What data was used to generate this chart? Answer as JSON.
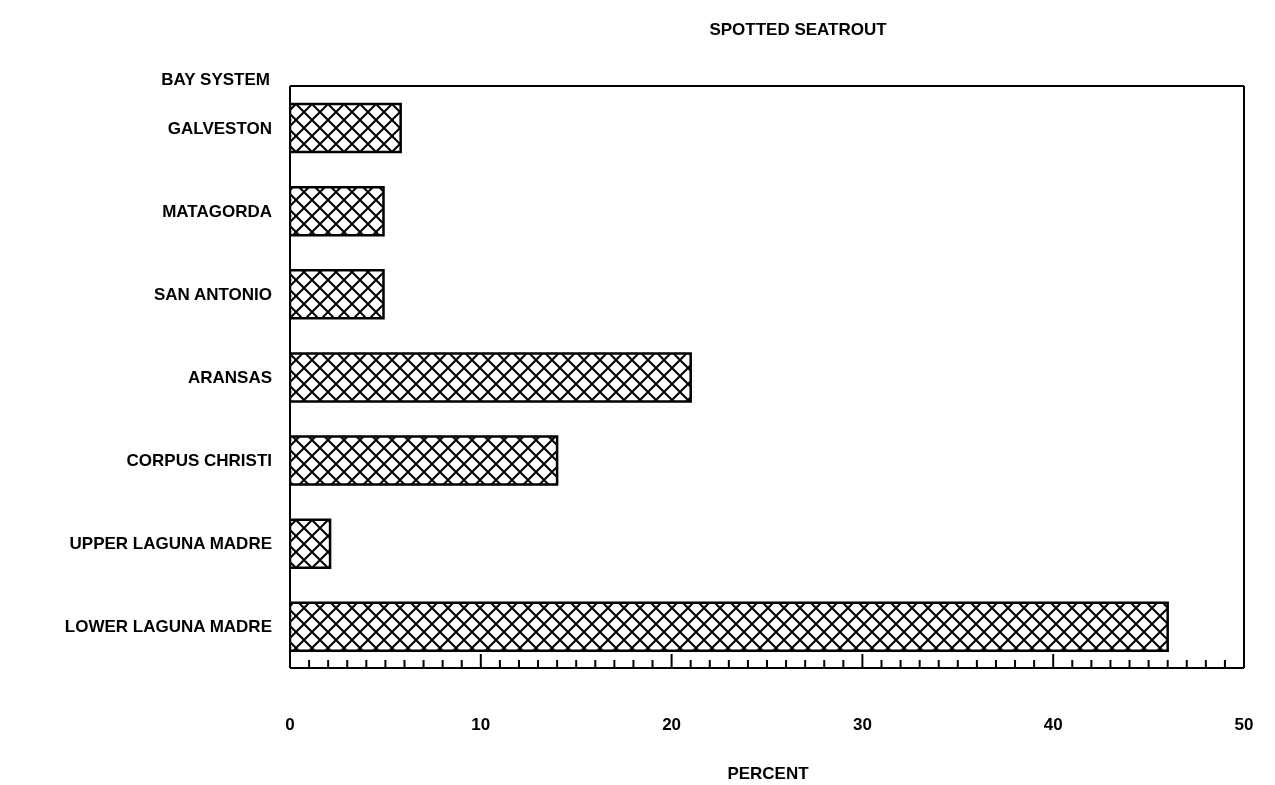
{
  "chart_data": {
    "type": "bar",
    "orientation": "horizontal",
    "title": "SPOTTED SEATROUT",
    "xlabel": "PERCENT",
    "ylabel": "BAY SYSTEM",
    "categories": [
      "GALVESTON",
      "MATAGORDA",
      "SAN ANTONIO",
      "ARANSAS",
      "CORPUS CHRISTI",
      "UPPER LAGUNA MADRE",
      "LOWER LAGUNA MADRE"
    ],
    "values": [
      5.8,
      4.9,
      4.9,
      21.0,
      14.0,
      2.1,
      46.0
    ],
    "color": "#000000",
    "xlim": [
      0,
      50
    ],
    "xticks": [
      0,
      {
        "value": 1,
        "label": null
      },
      {
        "value": 2,
        "label": null
      },
      {
        "value": 3,
        "label": null
      },
      {
        "value": 4,
        "label": null
      },
      {
        "value": 5,
        "label": null
      },
      {
        "value": 6,
        "label": null
      },
      {
        "value": 7,
        "label": null
      },
      {
        "value": 8,
        "label": null
      },
      {
        "value": 9,
        "label": null
      },
      10,
      {
        "value": 11,
        "label": null
      },
      {
        "value": 12,
        "label": null
      },
      {
        "value": 13,
        "label": null
      },
      {
        "value": 14,
        "label": null
      },
      {
        "value": 15,
        "label": null
      },
      {
        "value": 16,
        "label": null
      },
      {
        "value": 17,
        "label": null
      },
      {
        "value": 18,
        "label": null
      },
      {
        "value": 19,
        "label": null
      },
      20,
      {
        "value": 21,
        "label": null
      },
      {
        "value": 22,
        "label": null
      },
      {
        "value": 23,
        "label": null
      },
      {
        "value": 24,
        "label": null
      },
      {
        "value": 25,
        "label": null
      },
      {
        "value": 26,
        "label": null
      },
      {
        "value": 27,
        "label": null
      },
      {
        "value": 28,
        "label": null
      },
      {
        "value": 29,
        "label": null
      },
      30,
      {
        "value": 31,
        "label": null
      },
      {
        "value": 32,
        "label": null
      },
      {
        "value": 33,
        "label": null
      },
      {
        "value": 34,
        "label": null
      },
      {
        "value": 35,
        "label": null
      },
      {
        "value": 36,
        "label": null
      },
      {
        "value": 37,
        "label": null
      },
      {
        "value": 38,
        "label": null
      },
      {
        "value": 39,
        "label": null
      },
      40,
      {
        "value": 41,
        "label": null
      },
      {
        "value": 42,
        "label": null
      },
      {
        "value": 43,
        "label": null
      },
      {
        "value": 44,
        "label": null
      },
      {
        "value": 45,
        "label": null
      },
      {
        "value": 46,
        "label": null
      },
      {
        "value": 47,
        "label": null
      },
      {
        "value": 48,
        "label": null
      },
      {
        "value": 49,
        "label": null
      },
      50
    ]
  }
}
